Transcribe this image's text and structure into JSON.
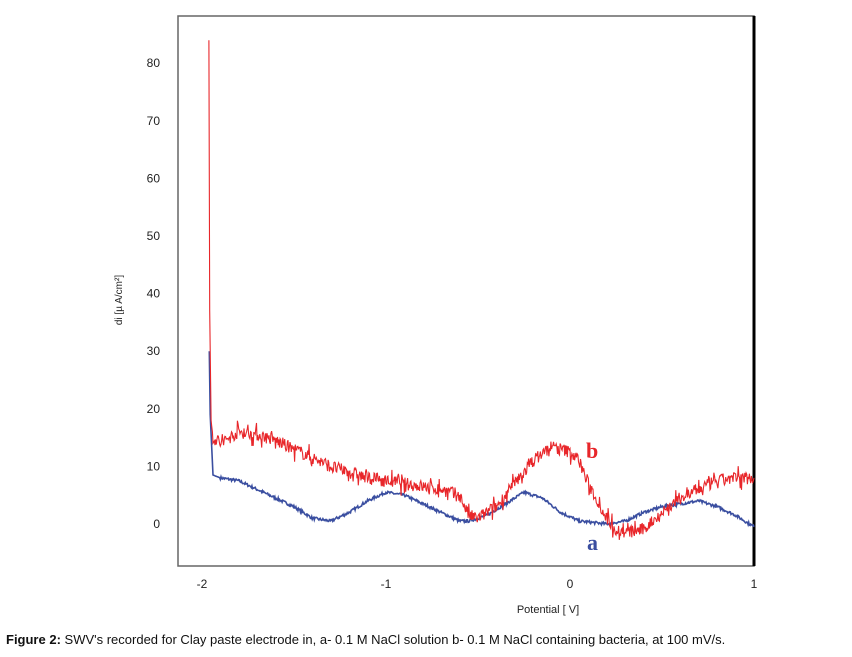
{
  "chart_data": {
    "type": "line",
    "xlabel": "Potential [ V]",
    "ylabel": "di [µ A/cm²]",
    "xlim": [
      -2.13,
      1.0
    ],
    "ylim": [
      -7.3,
      88.2
    ],
    "xticks": [
      -2,
      -1,
      0,
      1
    ],
    "yticks": [
      0,
      10,
      20,
      30,
      40,
      50,
      60,
      70,
      80
    ],
    "grid": false,
    "colors": {
      "a": "#3a4ea0",
      "b": "#e8262a"
    },
    "series": [
      {
        "name": "a",
        "label": "a",
        "x": [
          -1.96,
          -1.955,
          -1.94,
          -1.9,
          -1.8,
          -1.7,
          -1.6,
          -1.5,
          -1.4,
          -1.3,
          -1.2,
          -1.1,
          -1.0,
          -0.9,
          -0.8,
          -0.7,
          -0.6,
          -0.55,
          -0.45,
          -0.35,
          -0.25,
          -0.15,
          -0.05,
          0.05,
          0.2,
          0.3,
          0.4,
          0.5,
          0.6,
          0.7,
          0.8,
          0.9,
          1.0
        ],
        "y": [
          30,
          19,
          8.5,
          8,
          7.5,
          6,
          4.5,
          3,
          1,
          0.5,
          2,
          4,
          5.5,
          5,
          3.5,
          2,
          0.5,
          0.5,
          1.5,
          3.5,
          5.5,
          4.5,
          2,
          0.5,
          0,
          0.5,
          2,
          3,
          3.5,
          4,
          3,
          1.5,
          -0.5
        ]
      },
      {
        "name": "b",
        "label": "b",
        "x": [
          -1.962,
          -1.958,
          -1.95,
          -1.94,
          -1.9,
          -1.8,
          -1.7,
          -1.6,
          -1.5,
          -1.4,
          -1.3,
          -1.2,
          -1.1,
          -1.0,
          -0.9,
          -0.8,
          -0.7,
          -0.6,
          -0.55,
          -0.5,
          -0.4,
          -0.3,
          -0.2,
          -0.1,
          0.0,
          0.05,
          0.1,
          0.15,
          0.2,
          0.25,
          0.3,
          0.4,
          0.5,
          0.6,
          0.7,
          0.8,
          0.9,
          1.0
        ],
        "y": [
          84,
          37,
          18,
          15,
          14,
          16,
          15.5,
          14.5,
          13,
          11.5,
          10,
          9,
          8,
          7.5,
          7,
          6.5,
          6,
          5,
          1.5,
          1,
          3,
          7,
          11,
          13.5,
          12.5,
          11,
          7,
          4,
          1,
          -1,
          -1.5,
          -1,
          2,
          4.5,
          6,
          7.5,
          8,
          8
        ]
      }
    ]
  },
  "caption": {
    "label": "Figure 2:",
    "text": " SWV's recorded for Clay paste electrode in, a- 0.1 M NaCl solution b- 0.1 M NaCl containing bacteria, at 100 mV/s."
  }
}
